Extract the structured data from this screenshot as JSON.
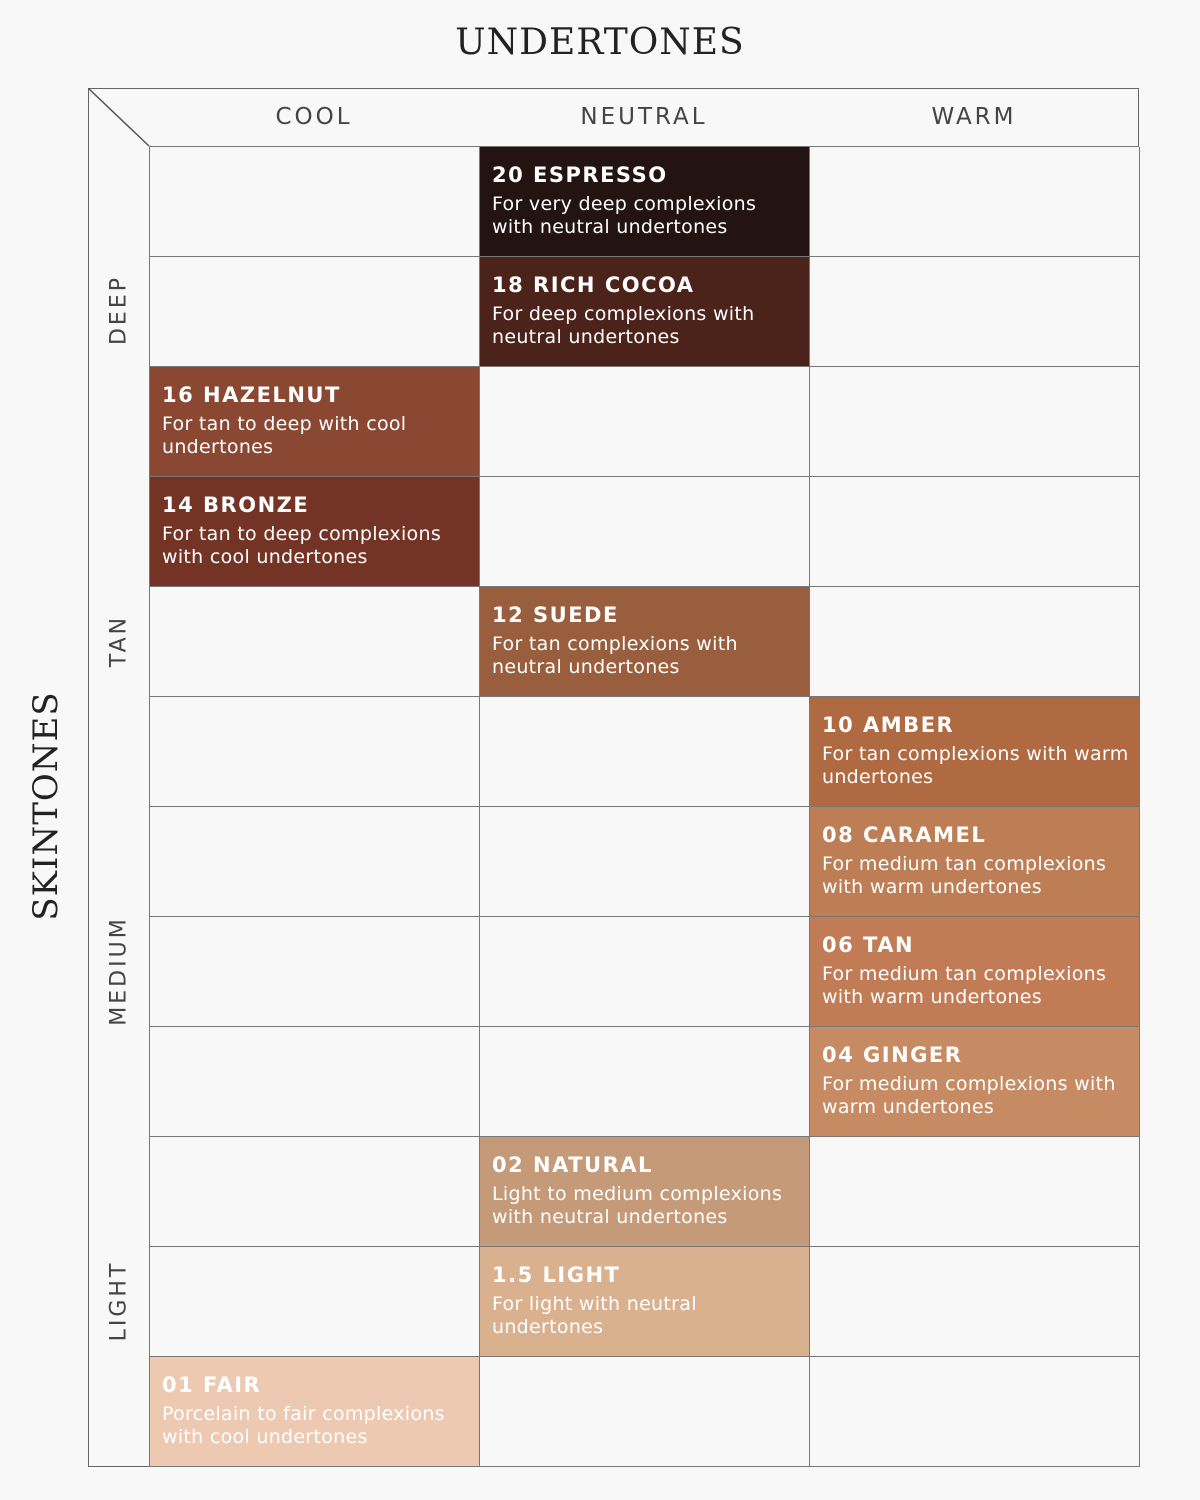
{
  "title": "UNDERTONES",
  "side_title": "SKINTONES",
  "columns": [
    "COOL",
    "NEUTRAL",
    "WARM"
  ],
  "row_groups": [
    "DEEP",
    "TAN",
    "MEDIUM",
    "LIGHT"
  ],
  "rows": [
    [
      null,
      {
        "name": "20 ESPRESSO",
        "desc": "For very deep complexions with neutral undertones",
        "color": "#231313"
      },
      null
    ],
    [
      null,
      {
        "name": "18 RICH COCOA",
        "desc": "For deep complexions with neutral undertones",
        "color": "#4b231a"
      },
      null
    ],
    [
      {
        "name": "16 HAZELNUT",
        "desc": "For tan to deep with cool undertones",
        "color": "#8a4833"
      },
      null,
      null
    ],
    [
      {
        "name": "14 BRONZE",
        "desc": "For tan to deep complexions with cool undertones",
        "color": "#733426"
      },
      null,
      null
    ],
    [
      null,
      {
        "name": "12 SUEDE",
        "desc": "For tan complexions with neutral undertones",
        "color": "#985e3d"
      },
      null
    ],
    [
      null,
      null,
      {
        "name": "10 AMBER",
        "desc": "For tan complexions with warm undertones",
        "color": "#b06a42"
      }
    ],
    [
      null,
      null,
      {
        "name": "08 CARAMEL",
        "desc": "For medium tan complexions with warm undertones",
        "color": "#bd7e56"
      }
    ],
    [
      null,
      null,
      {
        "name": "06 TAN",
        "desc": "For medium tan complexions with warm undertones",
        "color": "#c17c56"
      }
    ],
    [
      null,
      null,
      {
        "name": "04 GINGER",
        "desc": "For medium complexions with warm undertones",
        "color": "#c78b64"
      }
    ],
    [
      null,
      {
        "name": "02 NATURAL",
        "desc": "Light to medium complexions with neutral undertones",
        "color": "#c49a79"
      },
      null
    ],
    [
      null,
      {
        "name": "1.5 LIGHT",
        "desc": "For light with neutral undertones",
        "color": "#d9b18f"
      },
      null
    ],
    [
      {
        "name": "01 FAIR",
        "desc": "Porcelain to fair complexions with cool undertones",
        "color": "#ecc9b0"
      },
      null,
      null
    ]
  ]
}
